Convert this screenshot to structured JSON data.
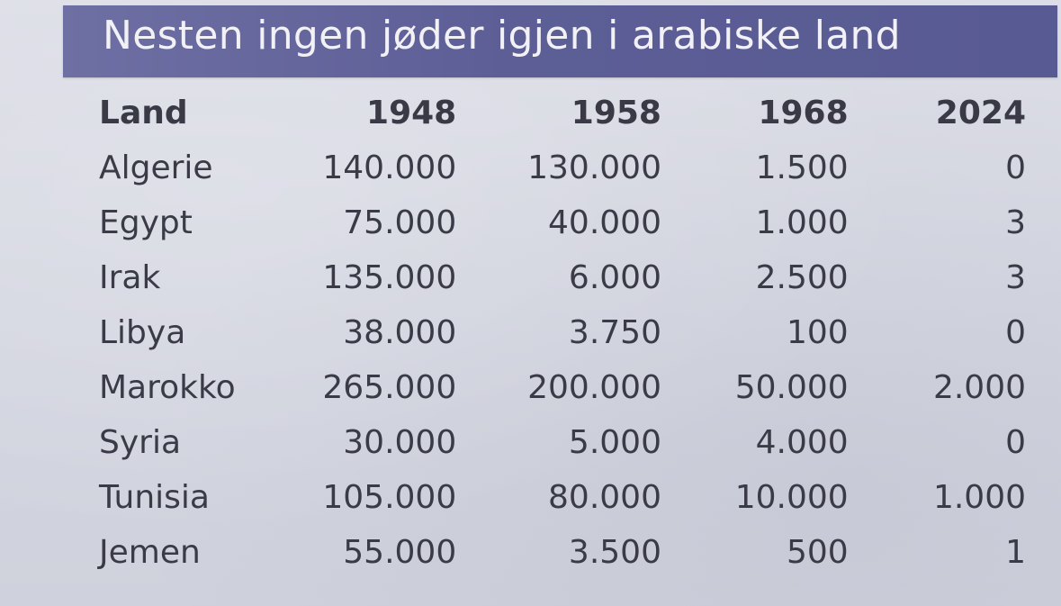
{
  "title": "Nesten ingen jøder igjen i arabiske land",
  "table": {
    "headers": [
      "Land",
      "1948",
      "1958",
      "1968",
      "2024"
    ],
    "rows": [
      [
        "Algerie",
        "140.000",
        "130.000",
        "1.500",
        "0"
      ],
      [
        "Egypt",
        "75.000",
        "40.000",
        "1.000",
        "3"
      ],
      [
        "Irak",
        "135.000",
        "6.000",
        "2.500",
        "3"
      ],
      [
        "Libya",
        "38.000",
        "3.750",
        "100",
        "0"
      ],
      [
        "Marokko",
        "265.000",
        "200.000",
        "50.000",
        "2.000"
      ],
      [
        "Syria",
        "30.000",
        "5.000",
        "4.000",
        "0"
      ],
      [
        "Tunisia",
        "105.000",
        "80.000",
        "10.000",
        "1.000"
      ],
      [
        "Jemen",
        "55.000",
        "3.500",
        "500",
        "1"
      ]
    ]
  },
  "colors": {
    "title_bar": "#5d5e96",
    "title_text": "#f2f1f6",
    "paper": "#d6d8e2",
    "body_text": "#3b3b47"
  }
}
